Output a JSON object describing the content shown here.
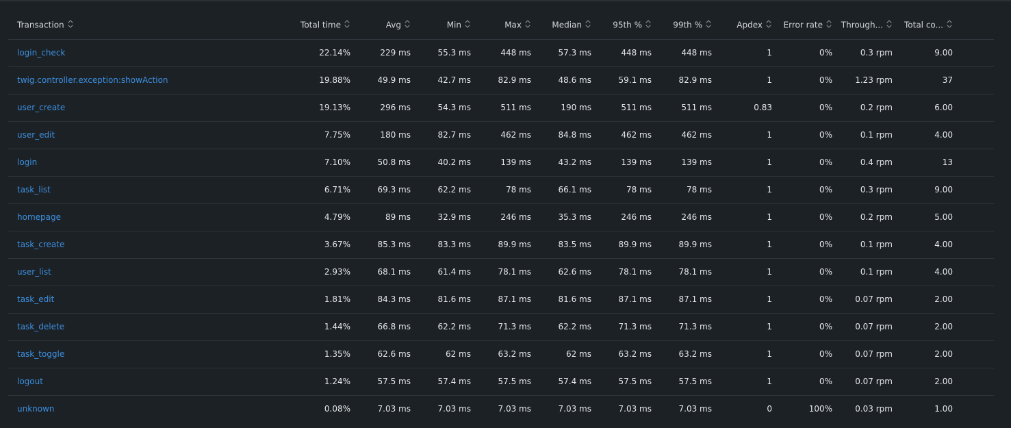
{
  "columns": [
    {
      "key": "transaction",
      "label": "Transaction"
    },
    {
      "key": "total_time",
      "label": "Total time"
    },
    {
      "key": "avg",
      "label": "Avg"
    },
    {
      "key": "min",
      "label": "Min"
    },
    {
      "key": "max",
      "label": "Max"
    },
    {
      "key": "median",
      "label": "Median"
    },
    {
      "key": "p95",
      "label": "95th %"
    },
    {
      "key": "p99",
      "label": "99th %"
    },
    {
      "key": "apdex",
      "label": "Apdex"
    },
    {
      "key": "error_rate",
      "label": "Error rate"
    },
    {
      "key": "throughput",
      "label": "Through..."
    },
    {
      "key": "total_count",
      "label": "Total co..."
    }
  ],
  "rows": [
    [
      "login_check",
      "22.14%",
      "229 ms",
      "55.3 ms",
      "448 ms",
      "57.3 ms",
      "448 ms",
      "448 ms",
      "1",
      "0%",
      "0.3 rpm",
      "9.00"
    ],
    [
      "twig.controller.exception:showAction",
      "19.88%",
      "49.9 ms",
      "42.7 ms",
      "82.9 ms",
      "48.6 ms",
      "59.1 ms",
      "82.9 ms",
      "1",
      "0%",
      "1.23 rpm",
      "37"
    ],
    [
      "user_create",
      "19.13%",
      "296 ms",
      "54.3 ms",
      "511 ms",
      "190 ms",
      "511 ms",
      "511 ms",
      "0.83",
      "0%",
      "0.2 rpm",
      "6.00"
    ],
    [
      "user_edit",
      "7.75%",
      "180 ms",
      "82.7 ms",
      "462 ms",
      "84.8 ms",
      "462 ms",
      "462 ms",
      "1",
      "0%",
      "0.1 rpm",
      "4.00"
    ],
    [
      "login",
      "7.10%",
      "50.8 ms",
      "40.2 ms",
      "139 ms",
      "43.2 ms",
      "139 ms",
      "139 ms",
      "1",
      "0%",
      "0.4 rpm",
      "13"
    ],
    [
      "task_list",
      "6.71%",
      "69.3 ms",
      "62.2 ms",
      "78 ms",
      "66.1 ms",
      "78 ms",
      "78 ms",
      "1",
      "0%",
      "0.3 rpm",
      "9.00"
    ],
    [
      "homepage",
      "4.79%",
      "89 ms",
      "32.9 ms",
      "246 ms",
      "35.3 ms",
      "246 ms",
      "246 ms",
      "1",
      "0%",
      "0.2 rpm",
      "5.00"
    ],
    [
      "task_create",
      "3.67%",
      "85.3 ms",
      "83.3 ms",
      "89.9 ms",
      "83.5 ms",
      "89.9 ms",
      "89.9 ms",
      "1",
      "0%",
      "0.1 rpm",
      "4.00"
    ],
    [
      "user_list",
      "2.93%",
      "68.1 ms",
      "61.4 ms",
      "78.1 ms",
      "62.6 ms",
      "78.1 ms",
      "78.1 ms",
      "1",
      "0%",
      "0.1 rpm",
      "4.00"
    ],
    [
      "task_edit",
      "1.81%",
      "84.3 ms",
      "81.6 ms",
      "87.1 ms",
      "81.6 ms",
      "87.1 ms",
      "87.1 ms",
      "1",
      "0%",
      "0.07 rpm",
      "2.00"
    ],
    [
      "task_delete",
      "1.44%",
      "66.8 ms",
      "62.2 ms",
      "71.3 ms",
      "62.2 ms",
      "71.3 ms",
      "71.3 ms",
      "1",
      "0%",
      "0.07 rpm",
      "2.00"
    ],
    [
      "task_toggle",
      "1.35%",
      "62.6 ms",
      "62 ms",
      "63.2 ms",
      "62 ms",
      "63.2 ms",
      "63.2 ms",
      "1",
      "0%",
      "0.07 rpm",
      "2.00"
    ],
    [
      "logout",
      "1.24%",
      "57.5 ms",
      "57.4 ms",
      "57.5 ms",
      "57.4 ms",
      "57.5 ms",
      "57.5 ms",
      "1",
      "0%",
      "0.07 rpm",
      "2.00"
    ],
    [
      "unknown",
      "0.08%",
      "7.03 ms",
      "7.03 ms",
      "7.03 ms",
      "7.03 ms",
      "7.03 ms",
      "7.03 ms",
      "0",
      "100%",
      "0.03 rpm",
      "1.00"
    ]
  ],
  "icons": {
    "sort": "sort-updown-icon"
  },
  "colors": {
    "background": "#1c2125",
    "link": "#3d8fe0",
    "text": "#e6e8ea",
    "divider": "#2d343a"
  }
}
